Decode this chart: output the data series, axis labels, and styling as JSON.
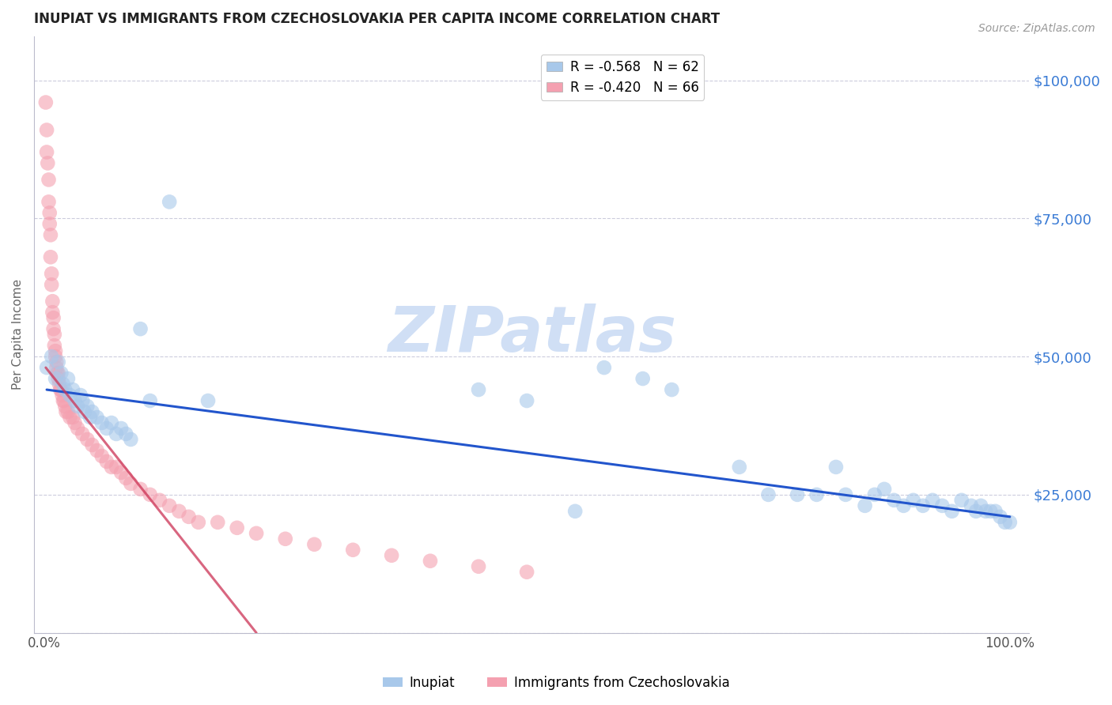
{
  "title": "INUPIAT VS IMMIGRANTS FROM CZECHOSLOVAKIA PER CAPITA INCOME CORRELATION CHART",
  "source": "Source: ZipAtlas.com",
  "ylabel": "Per Capita Income",
  "ytick_values": [
    0,
    25000,
    50000,
    75000,
    100000
  ],
  "ytick_labels_right": [
    "",
    "$25,000",
    "$50,000",
    "$75,000",
    "$100,000"
  ],
  "ylim": [
    0,
    108000
  ],
  "xlim": [
    -0.01,
    1.02
  ],
  "legend_entries": [
    {
      "label": "R = -0.568   N = 62",
      "color": "#a8c8ea"
    },
    {
      "label": "R = -0.420   N = 66",
      "color": "#f4a0b0"
    }
  ],
  "series1_color": "#a8c8ea",
  "series2_color": "#f4a0b0",
  "trendline1_color": "#2255cc",
  "trendline2_color": "#cc3355",
  "watermark_text": "ZIPatlas",
  "watermark_color": "#d0dff5",
  "background_color": "#ffffff",
  "grid_color": "#ccccdd",
  "inupiat_x": [
    0.003,
    0.008,
    0.012,
    0.015,
    0.018,
    0.02,
    0.022,
    0.025,
    0.027,
    0.03,
    0.032,
    0.035,
    0.038,
    0.04,
    0.042,
    0.045,
    0.048,
    0.05,
    0.055,
    0.06,
    0.065,
    0.07,
    0.075,
    0.08,
    0.085,
    0.09,
    0.1,
    0.11,
    0.13,
    0.17,
    0.45,
    0.5,
    0.55,
    0.58,
    0.62,
    0.65,
    0.72,
    0.75,
    0.78,
    0.8,
    0.82,
    0.83,
    0.85,
    0.86,
    0.87,
    0.88,
    0.89,
    0.9,
    0.91,
    0.92,
    0.93,
    0.94,
    0.95,
    0.96,
    0.965,
    0.97,
    0.975,
    0.98,
    0.985,
    0.99,
    0.995,
    1.0
  ],
  "inupiat_y": [
    48000,
    50000,
    46000,
    49000,
    47000,
    45000,
    44000,
    46000,
    43000,
    44000,
    42000,
    41000,
    43000,
    42000,
    40000,
    41000,
    39000,
    40000,
    39000,
    38000,
    37000,
    38000,
    36000,
    37000,
    36000,
    35000,
    55000,
    42000,
    78000,
    42000,
    44000,
    42000,
    22000,
    48000,
    46000,
    44000,
    30000,
    25000,
    25000,
    25000,
    30000,
    25000,
    23000,
    25000,
    26000,
    24000,
    23000,
    24000,
    23000,
    24000,
    23000,
    22000,
    24000,
    23000,
    22000,
    23000,
    22000,
    22000,
    22000,
    21000,
    20000,
    20000
  ],
  "czech_x": [
    0.002,
    0.003,
    0.003,
    0.004,
    0.005,
    0.005,
    0.006,
    0.006,
    0.007,
    0.007,
    0.008,
    0.008,
    0.009,
    0.009,
    0.01,
    0.01,
    0.011,
    0.011,
    0.012,
    0.012,
    0.013,
    0.013,
    0.014,
    0.015,
    0.015,
    0.016,
    0.017,
    0.018,
    0.019,
    0.02,
    0.021,
    0.022,
    0.023,
    0.025,
    0.027,
    0.03,
    0.032,
    0.035,
    0.04,
    0.045,
    0.05,
    0.055,
    0.06,
    0.065,
    0.07,
    0.075,
    0.08,
    0.085,
    0.09,
    0.1,
    0.11,
    0.12,
    0.13,
    0.14,
    0.15,
    0.16,
    0.18,
    0.2,
    0.22,
    0.25,
    0.28,
    0.32,
    0.36,
    0.4,
    0.45,
    0.5
  ],
  "czech_y": [
    96000,
    91000,
    87000,
    85000,
    82000,
    78000,
    76000,
    74000,
    72000,
    68000,
    65000,
    63000,
    60000,
    58000,
    57000,
    55000,
    54000,
    52000,
    51000,
    50000,
    49000,
    48000,
    47000,
    47000,
    46000,
    45000,
    44000,
    44000,
    43000,
    42000,
    42000,
    41000,
    40000,
    40000,
    39000,
    39000,
    38000,
    37000,
    36000,
    35000,
    34000,
    33000,
    32000,
    31000,
    30000,
    30000,
    29000,
    28000,
    27000,
    26000,
    25000,
    24000,
    23000,
    22000,
    21000,
    20000,
    20000,
    19000,
    18000,
    17000,
    16000,
    15000,
    14000,
    13000,
    12000,
    11000
  ],
  "trendline1_x": [
    0.003,
    1.0
  ],
  "trendline1_y": [
    44000,
    21000
  ],
  "trendline2_x": [
    0.002,
    0.22
  ],
  "trendline2_y": [
    48000,
    0
  ]
}
